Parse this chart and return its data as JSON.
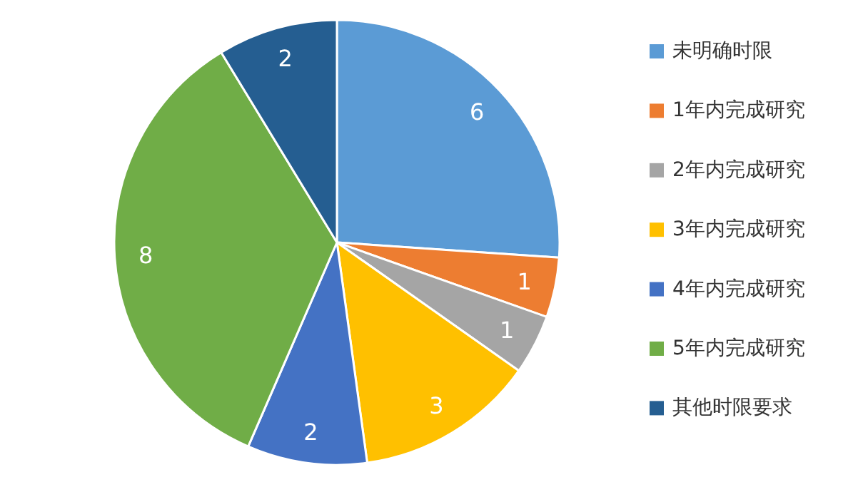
{
  "chart_data": {
    "type": "pie",
    "categories": [
      "未明确时限",
      "1年内完成研究",
      "2年内完成研究",
      "3年内完成研究",
      "4年内完成研究",
      "5年内完成研究",
      "其他时限要求"
    ],
    "values": [
      6,
      1,
      1,
      3,
      2,
      8,
      2
    ],
    "colors": [
      "#5b9bd5",
      "#ed7d31",
      "#a5a5a5",
      "#ffc000",
      "#4472c4",
      "#70ad47",
      "#255e91"
    ],
    "data_labels": true,
    "legend": "right"
  }
}
